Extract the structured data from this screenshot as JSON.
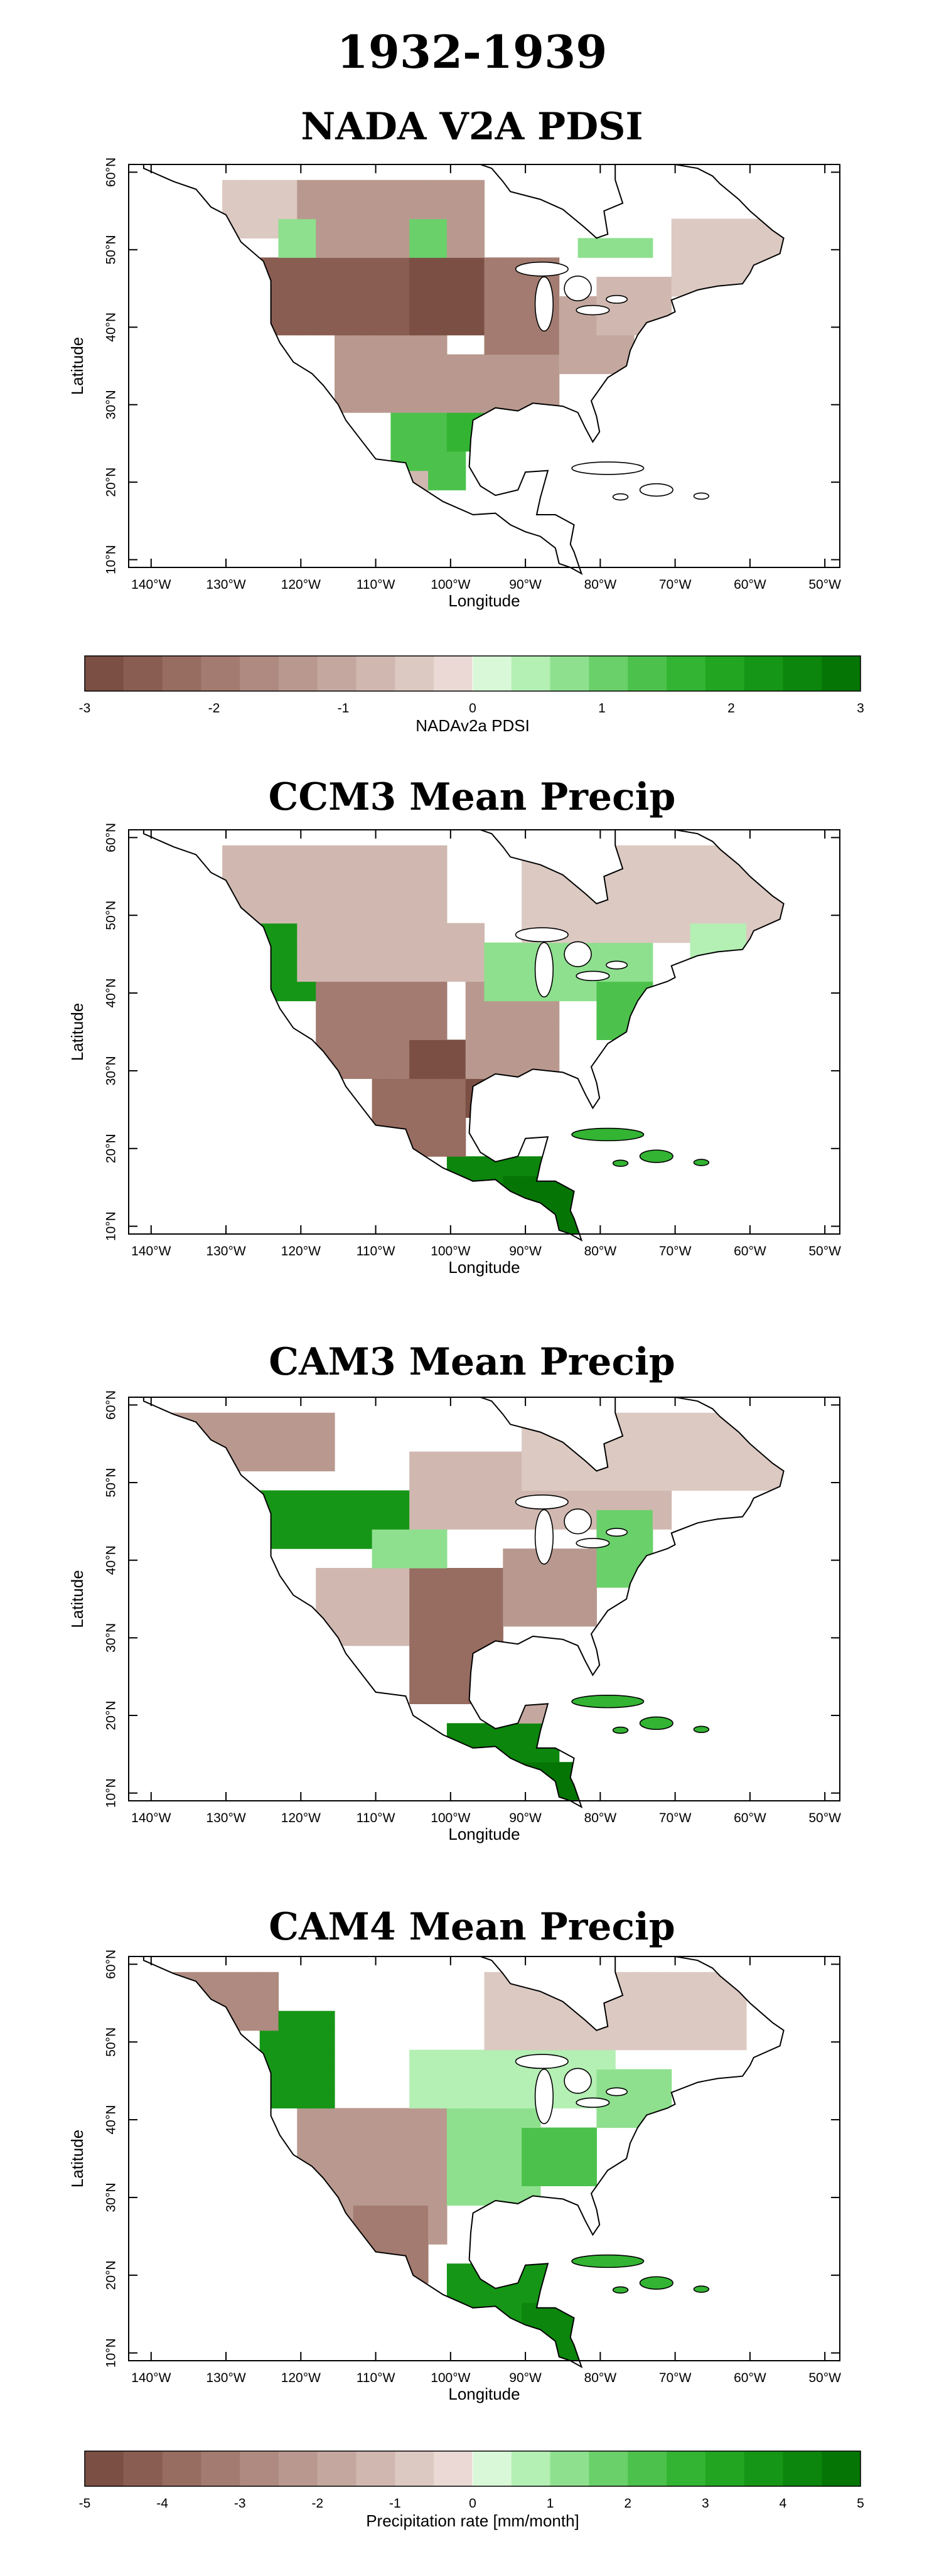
{
  "figure_title": "1932-1939",
  "colors": {
    "brown_scale": [
      "#7b4f44",
      "#8a5d52",
      "#976c61",
      "#a37b70",
      "#ae8a80",
      "#b9998f",
      "#c4a89f",
      "#d0b8b0",
      "#dcc9c2",
      "#ead9d4"
    ],
    "green_scale": [
      "#d8f8d8",
      "#b4efb4",
      "#8ee08e",
      "#6ad06a",
      "#4cc24c",
      "#33b433",
      "#22a622",
      "#169616",
      "#0c860c",
      "#057505"
    ],
    "missing": "#ffffff",
    "coast": "#000000"
  },
  "chart_data": [
    {
      "type": "heatmap",
      "title": "NADA V2A PDSI",
      "xlabel": "Longitude",
      "ylabel": "Latitude",
      "x_ticks": [
        "140°W",
        "130°W",
        "120°W",
        "110°W",
        "100°W",
        "90°W",
        "80°W",
        "70°W",
        "60°W",
        "50°W"
      ],
      "y_ticks": [
        "10°N",
        "20°N",
        "30°N",
        "40°N",
        "50°N",
        "60°N"
      ],
      "xlim": [
        -143,
        -48
      ],
      "ylim": [
        9,
        61
      ],
      "resolution_deg": 2.5,
      "regions": [
        {
          "lon": [
            -125,
            -100
          ],
          "lat": [
            40,
            50
          ],
          "value": -2.6
        },
        {
          "lon": [
            -105,
            -95
          ],
          "lat": [
            38,
            48
          ],
          "value": -3.0
        },
        {
          "lon": [
            -120,
            -95
          ],
          "lat": [
            50,
            58
          ],
          "value": -1.3
        },
        {
          "lon": [
            -95,
            -85
          ],
          "lat": [
            37,
            48
          ],
          "value": -1.8
        },
        {
          "lon": [
            -115,
            -100
          ],
          "lat": [
            30,
            40
          ],
          "value": -1.4
        },
        {
          "lon": [
            -100,
            -85
          ],
          "lat": [
            30,
            37
          ],
          "value": -1.2
        },
        {
          "lon": [
            -85,
            -75
          ],
          "lat": [
            33,
            45
          ],
          "value": -1.0
        },
        {
          "lon": [
            -80,
            -70
          ],
          "lat": [
            40,
            47
          ],
          "value": -0.6
        },
        {
          "lon": [
            -70,
            -55
          ],
          "lat": [
            45,
            53
          ],
          "value": -0.5
        },
        {
          "lon": [
            -108,
            -98
          ],
          "lat": [
            20,
            30
          ],
          "value": 1.3
        },
        {
          "lon": [
            -100,
            -95
          ],
          "lat": [
            24,
            30
          ],
          "value": 1.6
        },
        {
          "lon": [
            -108,
            -102
          ],
          "lat": [
            16,
            22
          ],
          "value": -0.6
        },
        {
          "lon": [
            -130,
            -120
          ],
          "lat": [
            52,
            60
          ],
          "value": -0.5
        },
        {
          "lon": [
            -123,
            -118
          ],
          "lat": [
            50,
            54
          ],
          "value": 0.8
        },
        {
          "lon": [
            -105,
            -100
          ],
          "lat": [
            50,
            53
          ],
          "value": 0.9
        },
        {
          "lon": [
            -83,
            -73
          ],
          "lat": [
            48,
            52
          ],
          "value": 0.7
        }
      ]
    },
    {
      "type": "heatmap",
      "title": "CCM3 Mean Precip",
      "xlabel": "Longitude",
      "ylabel": "Latitude",
      "x_ticks": [
        "140°W",
        "130°W",
        "120°W",
        "110°W",
        "100°W",
        "90°W",
        "80°W",
        "70°W",
        "60°W",
        "50°W"
      ],
      "y_ticks": [
        "10°N",
        "20°N",
        "30°N",
        "40°N",
        "50°N",
        "60°N"
      ],
      "xlim": [
        -143,
        -48
      ],
      "ylim": [
        9,
        61
      ],
      "resolution_deg": 2.5,
      "regions": [
        {
          "lon": [
            -125,
            -118
          ],
          "lat": [
            40,
            54
          ],
          "value": 3.6
        },
        {
          "lon": [
            -120,
            -113
          ],
          "lat": [
            45,
            53
          ],
          "value": 1.6
        },
        {
          "lon": [
            -118,
            -100
          ],
          "lat": [
            28,
            42
          ],
          "value": -3.4
        },
        {
          "lon": [
            -105,
            -95
          ],
          "lat": [
            25,
            35
          ],
          "value": -4.8
        },
        {
          "lon": [
            -110,
            -98
          ],
          "lat": [
            18,
            28
          ],
          "value": -3.8
        },
        {
          "lon": [
            -98,
            -85
          ],
          "lat": [
            30,
            42
          ],
          "value": -2.2
        },
        {
          "lon": [
            -120,
            -95
          ],
          "lat": [
            42,
            50
          ],
          "value": -1.4
        },
        {
          "lon": [
            -130,
            -100
          ],
          "lat": [
            50,
            60
          ],
          "value": -1.0
        },
        {
          "lon": [
            -95,
            -72
          ],
          "lat": [
            38,
            47
          ],
          "value": 1.3
        },
        {
          "lon": [
            -80,
            -72
          ],
          "lat": [
            35,
            42
          ],
          "value": 2.4
        },
        {
          "lon": [
            -100,
            -85
          ],
          "lat": [
            13,
            20
          ],
          "value": 4.2
        },
        {
          "lon": [
            -92,
            -82
          ],
          "lat": [
            8,
            16
          ],
          "value": 4.6
        },
        {
          "lon": [
            -83,
            -72
          ],
          "lat": [
            17,
            23
          ],
          "value": 2.8
        },
        {
          "lon": [
            -90,
            -55
          ],
          "lat": [
            47,
            60
          ],
          "value": -0.8
        },
        {
          "lon": [
            -68,
            -60
          ],
          "lat": [
            44,
            50
          ],
          "value": 0.6
        }
      ]
    },
    {
      "type": "heatmap",
      "title": "CAM3 Mean Precip",
      "xlabel": "Longitude",
      "ylabel": "Latitude",
      "x_ticks": [
        "140°W",
        "130°W",
        "120°W",
        "110°W",
        "100°W",
        "90°W",
        "80°W",
        "70°W",
        "60°W",
        "50°W"
      ],
      "y_ticks": [
        "10°N",
        "20°N",
        "30°N",
        "40°N",
        "50°N",
        "60°N"
      ],
      "xlim": [
        -143,
        -48
      ],
      "ylim": [
        9,
        61
      ],
      "resolution_deg": 2.5,
      "regions": [
        {
          "lon": [
            -125,
            -105
          ],
          "lat": [
            42,
            50
          ],
          "value": 3.8
        },
        {
          "lon": [
            -110,
            -100
          ],
          "lat": [
            40,
            45
          ],
          "value": 1.4
        },
        {
          "lon": [
            -140,
            -115
          ],
          "lat": [
            52,
            60
          ],
          "value": -2.4
        },
        {
          "lon": [
            -118,
            -105
          ],
          "lat": [
            28,
            40
          ],
          "value": -1.2
        },
        {
          "lon": [
            -105,
            -92
          ],
          "lat": [
            22,
            40
          ],
          "value": -3.6
        },
        {
          "lon": [
            -92,
            -80
          ],
          "lat": [
            32,
            42
          ],
          "value": -2.0
        },
        {
          "lon": [
            -105,
            -70
          ],
          "lat": [
            45,
            55
          ],
          "value": -1.0
        },
        {
          "lon": [
            -80,
            -72
          ],
          "lat": [
            37,
            46
          ],
          "value": 1.6
        },
        {
          "lon": [
            -100,
            -85
          ],
          "lat": [
            13,
            20
          ],
          "value": 4.0
        },
        {
          "lon": [
            -90,
            -82
          ],
          "lat": [
            8,
            15
          ],
          "value": 4.6
        },
        {
          "lon": [
            -78,
            -70
          ],
          "lat": [
            17,
            20
          ],
          "value": 3.5
        },
        {
          "lon": [
            -90,
            -55
          ],
          "lat": [
            48,
            60
          ],
          "value": -0.8
        },
        {
          "lon": [
            -93,
            -85
          ],
          "lat": [
            20,
            25
          ],
          "value": -1.5
        }
      ]
    },
    {
      "type": "heatmap",
      "title": "CAM4 Mean Precip",
      "xlabel": "Longitude",
      "ylabel": "Latitude",
      "x_ticks": [
        "140°W",
        "130°W",
        "120°W",
        "110°W",
        "100°W",
        "90°W",
        "80°W",
        "70°W",
        "60°W",
        "50°W"
      ],
      "y_ticks": [
        "10°N",
        "20°N",
        "30°N",
        "40°N",
        "50°N",
        "60°N"
      ],
      "xlim": [
        -143,
        -48
      ],
      "ylim": [
        9,
        61
      ],
      "resolution_deg": 2.5,
      "regions": [
        {
          "lon": [
            -125,
            -115
          ],
          "lat": [
            42,
            55
          ],
          "value": 3.6
        },
        {
          "lon": [
            -140,
            -122
          ],
          "lat": [
            52,
            60
          ],
          "value": -2.8
        },
        {
          "lon": [
            -120,
            -100
          ],
          "lat": [
            25,
            42
          ],
          "value": -2.2
        },
        {
          "lon": [
            -112,
            -102
          ],
          "lat": [
            18,
            28
          ],
          "value": -3.2
        },
        {
          "lon": [
            -100,
            -88
          ],
          "lat": [
            30,
            42
          ],
          "value": 1.4
        },
        {
          "lon": [
            -90,
            -80
          ],
          "lat": [
            32,
            40
          ],
          "value": 2.4
        },
        {
          "lon": [
            -105,
            -78
          ],
          "lat": [
            42,
            50
          ],
          "value": 0.6
        },
        {
          "lon": [
            -100,
            -85
          ],
          "lat": [
            14,
            22
          ],
          "value": 3.6
        },
        {
          "lon": [
            -90,
            -80
          ],
          "lat": [
            8,
            16
          ],
          "value": 4.4
        },
        {
          "lon": [
            -80,
            -72
          ],
          "lat": [
            17,
            21
          ],
          "value": 3.0
        },
        {
          "lon": [
            -95,
            -60
          ],
          "lat": [
            50,
            60
          ],
          "value": -0.7
        },
        {
          "lon": [
            -80,
            -70
          ],
          "lat": [
            40,
            46
          ],
          "value": 1.2
        }
      ]
    }
  ],
  "colorbars": [
    {
      "label": "NADAv2a PDSI",
      "min": -3,
      "max": 3,
      "tick_labels": [
        "-3",
        "-2",
        "-1",
        "0",
        "1",
        "2",
        "3"
      ]
    },
    {
      "label": "Precipitation rate [mm/month]",
      "min": -5,
      "max": 5,
      "tick_labels": [
        "-5",
        "-4",
        "-3",
        "-2",
        "-1",
        "0",
        "1",
        "2",
        "3",
        "4",
        "5"
      ]
    }
  ]
}
